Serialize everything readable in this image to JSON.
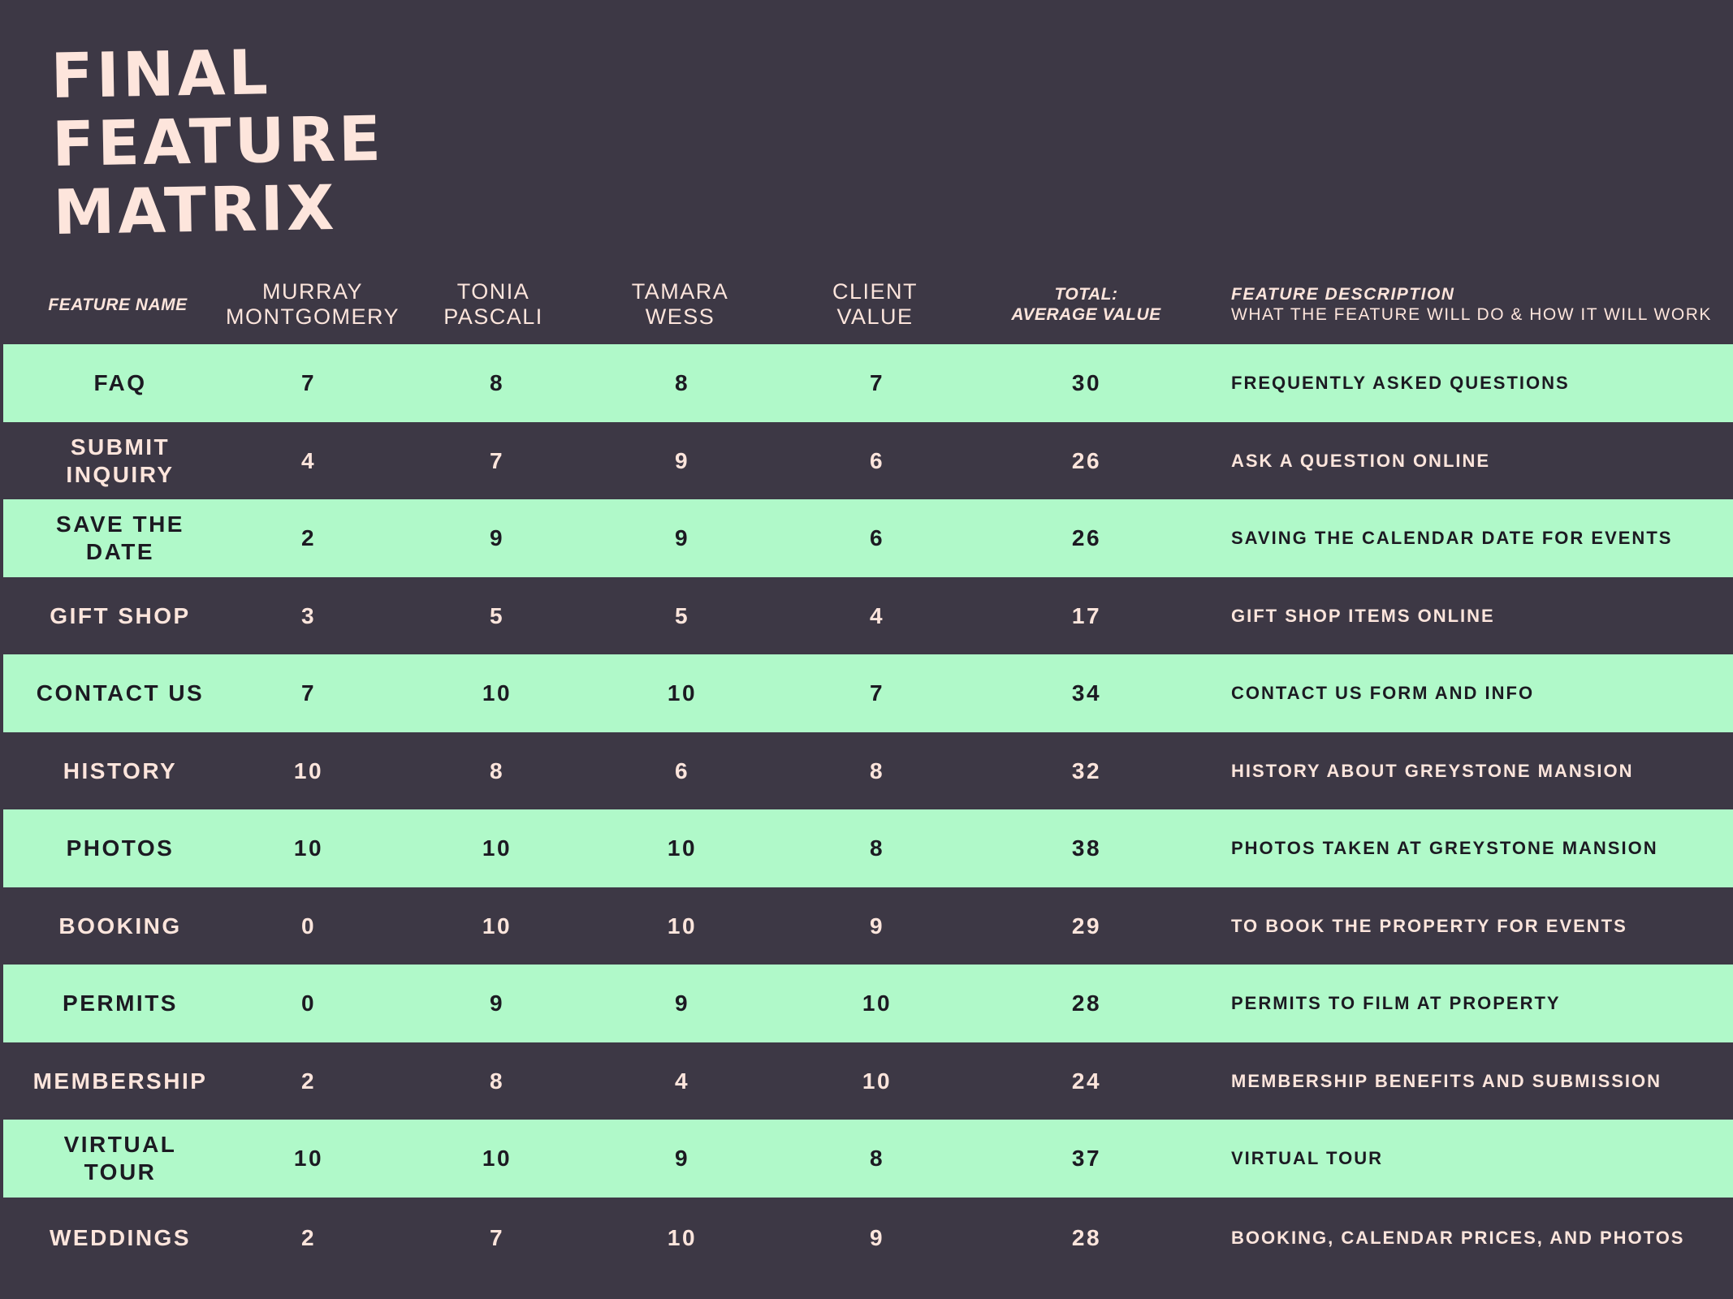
{
  "title": {
    "line1": "FINAL",
    "line2": "FEATURE",
    "line3": "MATRIX"
  },
  "header": {
    "feature_name": "FEATURE NAME",
    "col1_line1": "MURRAY",
    "col1_line2": "MONTGOMERY",
    "col2_line1": "TONIA",
    "col2_line2": "PASCALI",
    "col3_line1": "TAMARA",
    "col3_line2": "WESS",
    "col4_line1": "CLIENT",
    "col4_line2": "VALUE",
    "total_line1": "TOTAL:",
    "total_line2": "AVERAGE VALUE",
    "desc_title": "FEATURE DESCRIPTION",
    "desc_sub": "WHAT THE FEATURE WILL DO & HOW IT WILL WORK"
  },
  "rows": [
    {
      "name": "FAQ",
      "murray": "7",
      "tonia": "8",
      "tamara": "8",
      "client": "7",
      "total": "30",
      "description": "FREQUENTLY ASKED QUESTIONS"
    },
    {
      "name": "SUBMIT INQUIRY",
      "murray": "4",
      "tonia": "7",
      "tamara": "9",
      "client": "6",
      "total": "26",
      "description": "ASK A QUESTION ONLINE"
    },
    {
      "name": "SAVE THE DATE",
      "murray": "2",
      "tonia": "9",
      "tamara": "9",
      "client": "6",
      "total": "26",
      "description": "SAVING THE CALENDAR DATE FOR EVENTS"
    },
    {
      "name": "GIFT SHOP",
      "murray": "3",
      "tonia": "5",
      "tamara": "5",
      "client": "4",
      "total": "17",
      "description": "GIFT SHOP ITEMS ONLINE"
    },
    {
      "name": "CONTACT US",
      "murray": "7",
      "tonia": "10",
      "tamara": "10",
      "client": "7",
      "total": "34",
      "description": "CONTACT US FORM AND INFO"
    },
    {
      "name": "HISTORY",
      "murray": "10",
      "tonia": "8",
      "tamara": "6",
      "client": "8",
      "total": "32",
      "description": "HISTORY ABOUT GREYSTONE MANSION"
    },
    {
      "name": "PHOTOS",
      "murray": "10",
      "tonia": "10",
      "tamara": "10",
      "client": "8",
      "total": "38",
      "description": "PHOTOS TAKEN AT GREYSTONE MANSION"
    },
    {
      "name": "BOOKING",
      "murray": "0",
      "tonia": "10",
      "tamara": "10",
      "client": "9",
      "total": "29",
      "description": "TO BOOK THE PROPERTY FOR  EVENTS"
    },
    {
      "name": "PERMITS",
      "murray": "0",
      "tonia": "9",
      "tamara": "9",
      "client": "10",
      "total": "28",
      "description": "PERMITS TO FILM AT PROPERTY"
    },
    {
      "name": "MEMBERSHIP",
      "murray": "2",
      "tonia": "8",
      "tamara": "4",
      "client": "10",
      "total": "24",
      "description": "MEMBERSHIP BENEFITS AND SUBMISSION"
    },
    {
      "name": "VIRTUAL TOUR",
      "murray": "10",
      "tonia": "10",
      "tamara": "9",
      "client": "8",
      "total": "37",
      "description": "VIRTUAL TOUR"
    },
    {
      "name": "WEDDINGS",
      "murray": "2",
      "tonia": "7",
      "tamara": "10",
      "client": "9",
      "total": "28",
      "description": "BOOKING, CALENDAR PRICES, AND PHOTOS"
    }
  ],
  "colors": {
    "background": "#3d3845",
    "light_row": "#b0f9c9",
    "title_text": "#fde5dc",
    "light_text": "#fde5dc",
    "dark_text": "#1c1a22"
  }
}
